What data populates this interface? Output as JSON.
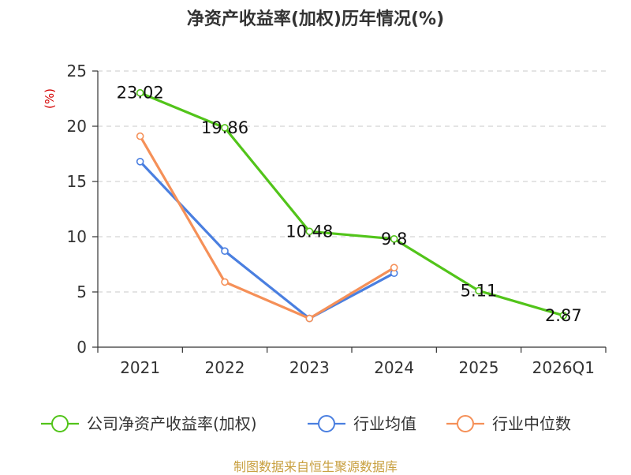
{
  "chart_data": {
    "type": "line",
    "title": "净资产收益率(加权)历年情况(%)",
    "ylabel": "(%)",
    "xlabel": "",
    "categories": [
      "2021",
      "2022",
      "2023",
      "2024",
      "2025",
      "2026Q1"
    ],
    "ylim": [
      0,
      25
    ],
    "yticks": [
      0,
      5,
      10,
      15,
      20,
      25
    ],
    "grid": "horizontal-dashed",
    "legend_position": "bottom",
    "series": [
      {
        "name": "公司净资产收益率(加权)",
        "color": "#52c41a",
        "values": [
          23.02,
          19.86,
          10.48,
          9.8,
          5.11,
          2.87
        ],
        "labels": [
          "23.02",
          "19.86",
          "10.48",
          "9.8",
          "5.11",
          "2.87"
        ]
      },
      {
        "name": "行业均值",
        "color": "#4a7fe0",
        "values": [
          16.8,
          8.7,
          2.6,
          6.7,
          null,
          null
        ]
      },
      {
        "name": "行业中位数",
        "color": "#f59058",
        "values": [
          19.1,
          5.9,
          2.6,
          7.2,
          null,
          null
        ]
      }
    ]
  },
  "source": "制图数据来自恒生聚源数据库"
}
